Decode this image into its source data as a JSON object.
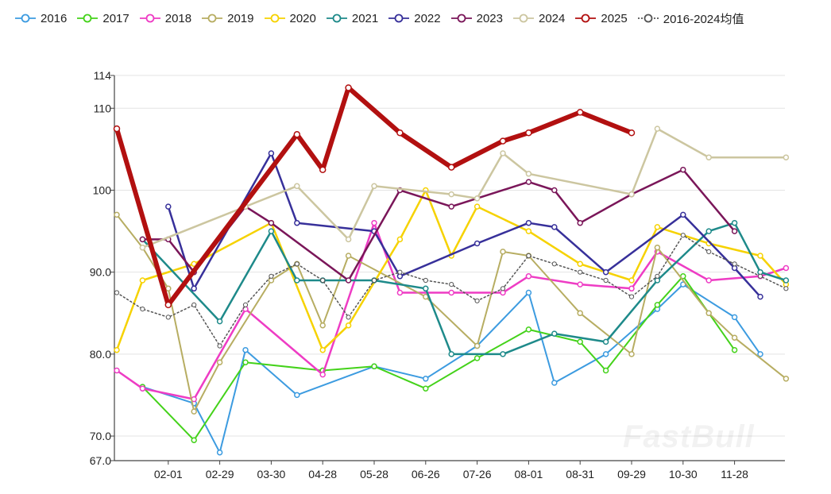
{
  "chart_data": {
    "type": "line",
    "title": "",
    "xlabel": "",
    "ylabel": "",
    "ylim": [
      67.0,
      114
    ],
    "x_index_range": [
      0,
      24
    ],
    "yticks": [
      67.0,
      70.0,
      80.0,
      90.0,
      100,
      110,
      114
    ],
    "ytick_labels": [
      "67.0",
      "70.0",
      "80.0",
      "90.0",
      "100",
      "110",
      "114"
    ],
    "xticks": [
      {
        "label": "02-01",
        "pos": 2
      },
      {
        "label": "02-29",
        "pos": 4
      },
      {
        "label": "03-30",
        "pos": 6
      },
      {
        "label": "04-28",
        "pos": 8
      },
      {
        "label": "05-28",
        "pos": 10
      },
      {
        "label": "06-26",
        "pos": 12
      },
      {
        "label": "07-26",
        "pos": 14
      },
      {
        "label": "08-01",
        "pos": 16
      },
      {
        "label": "08-31",
        "pos": 18
      },
      {
        "label": "09-29",
        "pos": 20
      },
      {
        "label": "10-30",
        "pos": 22
      },
      {
        "label": "11-28",
        "pos": 24
      }
    ],
    "series": [
      {
        "name": "2016",
        "color": "#3c9be0",
        "width": 2,
        "points": [
          [
            1,
            76
          ],
          [
            3,
            74
          ],
          [
            4,
            68
          ],
          [
            5,
            80.5
          ],
          [
            7,
            75
          ],
          [
            10,
            78.5
          ],
          [
            12,
            77
          ],
          [
            14,
            81
          ],
          [
            16,
            87.5
          ],
          [
            17,
            76.5
          ],
          [
            19,
            80
          ],
          [
            21,
            85.5
          ],
          [
            22,
            88.5
          ],
          [
            24,
            84.5
          ],
          [
            25,
            80
          ]
        ]
      },
      {
        "name": "2017",
        "color": "#44d21a",
        "width": 2,
        "points": [
          [
            1,
            76
          ],
          [
            3,
            69.5
          ],
          [
            5,
            79
          ],
          [
            8,
            78
          ],
          [
            10,
            78.5
          ],
          [
            12,
            75.8
          ],
          [
            14,
            79.5
          ],
          [
            16,
            83
          ],
          [
            18,
            81.5
          ],
          [
            19,
            78
          ],
          [
            21,
            86
          ],
          [
            22,
            89.5
          ],
          [
            24,
            80.5
          ]
        ]
      },
      {
        "name": "2018",
        "color": "#ee3cc4",
        "width": 2.5,
        "points": [
          [
            0,
            78
          ],
          [
            1,
            75.8
          ],
          [
            3,
            74.5
          ],
          [
            5,
            85.5
          ],
          [
            8,
            77.5
          ],
          [
            10,
            96
          ],
          [
            11,
            87.5
          ],
          [
            13,
            87.5
          ],
          [
            15,
            87.5
          ],
          [
            16,
            89.5
          ],
          [
            18,
            88.5
          ],
          [
            20,
            88
          ],
          [
            21,
            92.5
          ],
          [
            23,
            89
          ],
          [
            25,
            89.5
          ],
          [
            26,
            90.5
          ]
        ]
      },
      {
        "name": "2019",
        "color": "#b7ad62",
        "width": 2,
        "points": [
          [
            0,
            97
          ],
          [
            1,
            93
          ],
          [
            2,
            88
          ],
          [
            3,
            73
          ],
          [
            4,
            79
          ],
          [
            6,
            89
          ],
          [
            7,
            91
          ],
          [
            8,
            83.5
          ],
          [
            9,
            92
          ],
          [
            12,
            87
          ],
          [
            14,
            81
          ],
          [
            15,
            92.5
          ],
          [
            16,
            92
          ],
          [
            18,
            85
          ],
          [
            20,
            80
          ],
          [
            21,
            93
          ],
          [
            23,
            85
          ],
          [
            24,
            82
          ],
          [
            26,
            77
          ]
        ]
      },
      {
        "name": "2020",
        "color": "#f6d200",
        "width": 2.5,
        "points": [
          [
            0,
            80.5
          ],
          [
            1,
            89
          ],
          [
            3,
            91
          ],
          [
            6,
            96
          ],
          [
            8,
            80.5
          ],
          [
            9,
            83.5
          ],
          [
            11,
            94
          ],
          [
            12,
            100
          ],
          [
            13,
            92
          ],
          [
            14,
            98
          ],
          [
            16,
            95
          ],
          [
            18,
            91
          ],
          [
            20,
            89
          ],
          [
            21,
            95.5
          ],
          [
            23,
            93.5
          ],
          [
            25,
            92
          ],
          [
            26,
            88.5
          ]
        ]
      },
      {
        "name": "2021",
        "color": "#1e8a8a",
        "width": 2.5,
        "points": [
          [
            1,
            94
          ],
          [
            4,
            84
          ],
          [
            6,
            95
          ],
          [
            7,
            89
          ],
          [
            8,
            89
          ],
          [
            10,
            89
          ],
          [
            12,
            88
          ],
          [
            13,
            80
          ],
          [
            15,
            80
          ],
          [
            17,
            82.5
          ],
          [
            19,
            81.5
          ],
          [
            21,
            89
          ],
          [
            23,
            95
          ],
          [
            24,
            96
          ],
          [
            25,
            90
          ],
          [
            26,
            89
          ]
        ]
      },
      {
        "name": "2022",
        "color": "#37309a",
        "width": 2.5,
        "points": [
          [
            2,
            98
          ],
          [
            3,
            88
          ],
          [
            6,
            104.5
          ],
          [
            7,
            96
          ],
          [
            10,
            95
          ],
          [
            11,
            89.5
          ],
          [
            14,
            93.5
          ],
          [
            16,
            96
          ],
          [
            17,
            95.5
          ],
          [
            19,
            90
          ],
          [
            22,
            97
          ],
          [
            24,
            90.5
          ],
          [
            25,
            87
          ]
        ]
      },
      {
        "name": "2023",
        "color": "#7a1659",
        "width": 2.5,
        "points": [
          [
            1,
            94
          ],
          [
            2,
            94
          ],
          [
            3,
            90
          ],
          [
            5,
            98
          ],
          [
            6,
            96
          ],
          [
            9,
            89
          ],
          [
            11,
            100
          ],
          [
            13,
            98
          ],
          [
            16,
            101
          ],
          [
            17,
            100
          ],
          [
            18,
            96
          ],
          [
            20,
            99.5
          ],
          [
            22,
            102.5
          ],
          [
            24,
            95
          ]
        ]
      },
      {
        "name": "2024",
        "color": "#ccc6a0",
        "width": 2.5,
        "points": [
          [
            1,
            93
          ],
          [
            5,
            98
          ],
          [
            7,
            100.5
          ],
          [
            9,
            94
          ],
          [
            10,
            100.5
          ],
          [
            13,
            99.5
          ],
          [
            14,
            99
          ],
          [
            15,
            104.5
          ],
          [
            16,
            102
          ],
          [
            20,
            99.5
          ],
          [
            21,
            107.5
          ],
          [
            23,
            104
          ],
          [
            26,
            104
          ]
        ]
      },
      {
        "name": "2025",
        "color": "#b21010",
        "width": 6,
        "points": [
          [
            0,
            107.5
          ],
          [
            2,
            86
          ],
          [
            7,
            106.8
          ],
          [
            8,
            102.5
          ],
          [
            9,
            112.5
          ],
          [
            11,
            107
          ],
          [
            13,
            102.8
          ],
          [
            15,
            106
          ],
          [
            16,
            107
          ],
          [
            18,
            109.5
          ],
          [
            20,
            107
          ]
        ]
      },
      {
        "name": "2016-2024均值",
        "color": "#555555",
        "width": 1.5,
        "dashed": true,
        "points": [
          [
            0,
            87.5
          ],
          [
            1,
            85.5
          ],
          [
            2,
            84.5
          ],
          [
            3,
            86
          ],
          [
            4,
            81
          ],
          [
            5,
            86
          ],
          [
            6,
            89.5
          ],
          [
            7,
            91
          ],
          [
            8,
            89
          ],
          [
            9,
            84.5
          ],
          [
            10,
            89
          ],
          [
            11,
            90
          ],
          [
            12,
            89
          ],
          [
            13,
            88.5
          ],
          [
            14,
            86.5
          ],
          [
            15,
            88
          ],
          [
            16,
            92
          ],
          [
            17,
            91
          ],
          [
            18,
            90
          ],
          [
            19,
            89
          ],
          [
            20,
            87
          ],
          [
            21,
            89.5
          ],
          [
            22,
            94.5
          ],
          [
            23,
            92.5
          ],
          [
            24,
            91
          ],
          [
            25,
            89.5
          ],
          [
            26,
            88
          ]
        ]
      }
    ]
  }
}
